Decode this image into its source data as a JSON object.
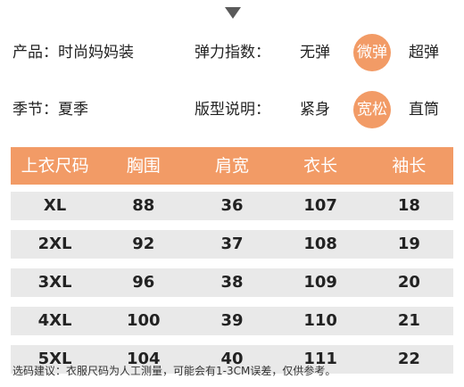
{
  "product": {
    "label": "产品：时尚妈妈装"
  },
  "season": {
    "label": "季节：夏季"
  },
  "elasticity": {
    "label": "弹力指数：",
    "options": [
      "无弹",
      "微弹",
      "超弹"
    ],
    "selected": "微弹"
  },
  "fit": {
    "label": "版型说明：",
    "options": [
      "紧身",
      "宽松",
      "直筒"
    ],
    "selected": "宽松"
  },
  "table": {
    "headers": [
      "上衣尺码",
      "胸围",
      "肩宽",
      "衣长",
      "袖长"
    ],
    "rows": [
      [
        "XL",
        "88",
        "36",
        "107",
        "18"
      ],
      [
        "2XL",
        "92",
        "37",
        "108",
        "19"
      ],
      [
        "3XL",
        "96",
        "38",
        "109",
        "20"
      ],
      [
        "4XL",
        "100",
        "39",
        "110",
        "21"
      ],
      [
        "5XL",
        "104",
        "40",
        "111",
        "22"
      ]
    ]
  },
  "footnote": "选码建议：衣服尺码为人工测量，可能会有1-3CM误差，仅供参考。",
  "colors": {
    "accent": "#f29b66",
    "row_bg": "#e9e9e9",
    "arrow": "#5a5a5a"
  }
}
